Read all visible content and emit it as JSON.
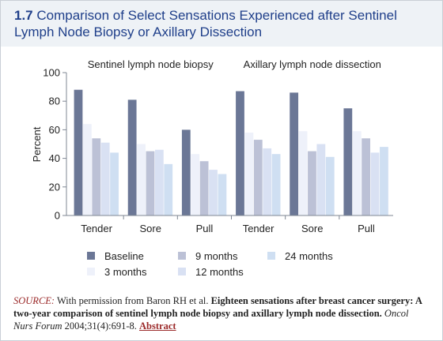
{
  "figure": {
    "number": "1.7",
    "title": "Comparison of Select Sensations Experienced after Sentinel Lymph Node Biopsy or Axillary Dissection"
  },
  "source": {
    "label": "SOURCE:",
    "text1": "With permission from Baron RH et al.",
    "bold_title": "Eighteen sensations after breast cancer surgery: A two-year comparison of sentinel lymph node biopsy and axillary lymph node dissection.",
    "journal": "Oncol Nurs Forum",
    "citation": "2004;31(4):691-8.",
    "link": "Abstract"
  },
  "chart_data": {
    "type": "bar",
    "ylabel": "Percent",
    "ylim": [
      0,
      100
    ],
    "yticks": [
      0,
      20,
      40,
      60,
      80,
      100
    ],
    "panels": [
      {
        "label": "Sentinel lymph node biopsy",
        "categories": [
          "Tender",
          "Sore",
          "Pull"
        ],
        "series": [
          {
            "name": "Baseline",
            "values": [
              88,
              81,
              60
            ]
          },
          {
            "name": "3 months",
            "values": [
              64,
              50,
              43
            ]
          },
          {
            "name": "9 months",
            "values": [
              54,
              45,
              38
            ]
          },
          {
            "name": "12 months",
            "values": [
              51,
              46,
              32
            ]
          },
          {
            "name": "24 months",
            "values": [
              44,
              36,
              29
            ]
          }
        ]
      },
      {
        "label": "Axillary lymph node dissection",
        "categories": [
          "Tender",
          "Sore",
          "Pull"
        ],
        "series": [
          {
            "name": "Baseline",
            "values": [
              87,
              86,
              75
            ]
          },
          {
            "name": "3 months",
            "values": [
              58,
              59,
              59
            ]
          },
          {
            "name": "9 months",
            "values": [
              53,
              45,
              54
            ]
          },
          {
            "name": "12 months",
            "values": [
              47,
              50,
              44
            ]
          },
          {
            "name": "24 months",
            "values": [
              43,
              41,
              48
            ]
          }
        ]
      }
    ],
    "colors": {
      "Baseline": "#6b7796",
      "3 months": "#eef1fa",
      "9 months": "#bcc1d6",
      "12 months": "#d9e1f3",
      "24 months": "#cfdff2"
    },
    "legend_order": [
      "Baseline",
      "9 months",
      "24 months",
      "3 months",
      "12 months"
    ],
    "legend_position": "bottom"
  }
}
